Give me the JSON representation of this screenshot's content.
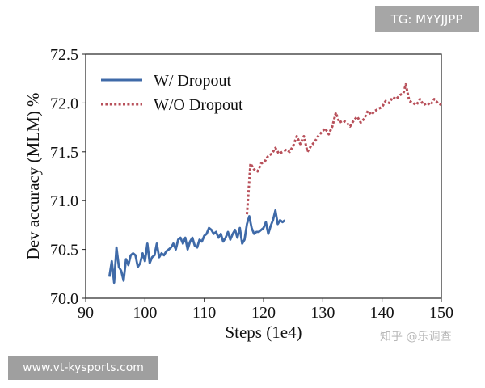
{
  "watermarks": {
    "top_badge": "TG: MYYJJPP",
    "bottom_badge": "www.vt-kysports.com",
    "zhihu": "知乎 @乐调查"
  },
  "chart_data": {
    "type": "line",
    "xlabel": "Steps (1e4)",
    "ylabel": "Dev accuracy (MLM) %",
    "xlim": [
      90,
      150
    ],
    "ylim": [
      70.0,
      72.5
    ],
    "x_ticks": [
      90,
      100,
      110,
      120,
      130,
      140,
      150
    ],
    "y_ticks": [
      70.0,
      70.5,
      71.0,
      71.5,
      72.0,
      72.5
    ],
    "x_tick_labels": [
      "90",
      "100",
      "110",
      "120",
      "130",
      "140",
      "150"
    ],
    "y_tick_labels": [
      "70.0",
      "70.5",
      "71.0",
      "71.5",
      "72.0",
      "72.5"
    ],
    "grid": false,
    "legend_position": "top-left",
    "series": [
      {
        "name": "W/ Dropout",
        "color": "#3f6aa8",
        "style": "solid",
        "points": [
          [
            94.0,
            70.22
          ],
          [
            94.4,
            70.38
          ],
          [
            94.8,
            70.16
          ],
          [
            95.2,
            70.52
          ],
          [
            95.6,
            70.32
          ],
          [
            96.0,
            70.28
          ],
          [
            96.4,
            70.18
          ],
          [
            96.8,
            70.4
          ],
          [
            97.2,
            70.34
          ],
          [
            97.6,
            70.44
          ],
          [
            98.0,
            70.46
          ],
          [
            98.4,
            70.44
          ],
          [
            98.8,
            70.32
          ],
          [
            99.2,
            70.36
          ],
          [
            99.6,
            70.46
          ],
          [
            100.0,
            70.38
          ],
          [
            100.4,
            70.56
          ],
          [
            100.8,
            70.36
          ],
          [
            101.2,
            70.42
          ],
          [
            101.6,
            70.44
          ],
          [
            102.0,
            70.56
          ],
          [
            102.4,
            70.42
          ],
          [
            102.8,
            70.46
          ],
          [
            103.2,
            70.44
          ],
          [
            103.6,
            70.48
          ],
          [
            104.0,
            70.5
          ],
          [
            104.4,
            70.52
          ],
          [
            104.8,
            70.56
          ],
          [
            105.2,
            70.5
          ],
          [
            105.6,
            70.6
          ],
          [
            106.0,
            70.62
          ],
          [
            106.4,
            70.56
          ],
          [
            106.8,
            70.62
          ],
          [
            107.2,
            70.5
          ],
          [
            107.6,
            70.58
          ],
          [
            108.0,
            70.62
          ],
          [
            108.4,
            70.54
          ],
          [
            108.8,
            70.52
          ],
          [
            109.2,
            70.6
          ],
          [
            109.6,
            70.58
          ],
          [
            110.0,
            70.64
          ],
          [
            110.4,
            70.66
          ],
          [
            110.8,
            70.72
          ],
          [
            111.2,
            70.7
          ],
          [
            111.6,
            70.66
          ],
          [
            112.0,
            70.68
          ],
          [
            112.4,
            70.62
          ],
          [
            112.8,
            70.66
          ],
          [
            113.2,
            70.58
          ],
          [
            113.6,
            70.62
          ],
          [
            114.0,
            70.68
          ],
          [
            114.4,
            70.6
          ],
          [
            114.8,
            70.66
          ],
          [
            115.2,
            70.7
          ],
          [
            115.6,
            70.62
          ],
          [
            116.0,
            70.72
          ],
          [
            116.4,
            70.56
          ],
          [
            116.8,
            70.6
          ],
          [
            117.2,
            70.76
          ],
          [
            117.6,
            70.84
          ],
          [
            118.0,
            70.72
          ],
          [
            118.4,
            70.66
          ],
          [
            118.8,
            70.68
          ],
          [
            119.2,
            70.68
          ],
          [
            119.6,
            70.7
          ],
          [
            120.0,
            70.72
          ],
          [
            120.4,
            70.78
          ],
          [
            120.8,
            70.66
          ],
          [
            121.2,
            70.74
          ],
          [
            121.6,
            70.8
          ],
          [
            122.0,
            70.9
          ],
          [
            122.4,
            70.76
          ],
          [
            122.8,
            70.8
          ],
          [
            123.2,
            70.78
          ],
          [
            123.6,
            70.8
          ]
        ]
      },
      {
        "name": "W/O Dropout",
        "color": "#b8505a",
        "style": "dotted",
        "points": [
          [
            117.2,
            70.86
          ],
          [
            117.8,
            71.38
          ],
          [
            118.4,
            71.32
          ],
          [
            119.0,
            71.3
          ],
          [
            119.6,
            71.38
          ],
          [
            120.2,
            71.4
          ],
          [
            120.8,
            71.46
          ],
          [
            121.4,
            71.48
          ],
          [
            122.0,
            71.54
          ],
          [
            122.6,
            71.48
          ],
          [
            123.2,
            71.5
          ],
          [
            123.8,
            71.52
          ],
          [
            124.4,
            71.5
          ],
          [
            125.0,
            71.56
          ],
          [
            125.6,
            71.66
          ],
          [
            126.2,
            71.58
          ],
          [
            126.8,
            71.66
          ],
          [
            127.4,
            71.5
          ],
          [
            128.0,
            71.56
          ],
          [
            128.6,
            71.6
          ],
          [
            129.2,
            71.66
          ],
          [
            129.8,
            71.7
          ],
          [
            130.4,
            71.74
          ],
          [
            131.0,
            71.68
          ],
          [
            131.6,
            71.76
          ],
          [
            132.2,
            71.9
          ],
          [
            132.8,
            71.8
          ],
          [
            133.4,
            71.82
          ],
          [
            134.0,
            71.8
          ],
          [
            134.6,
            71.76
          ],
          [
            135.2,
            71.82
          ],
          [
            135.8,
            71.86
          ],
          [
            136.4,
            71.8
          ],
          [
            137.0,
            71.84
          ],
          [
            137.6,
            71.92
          ],
          [
            138.2,
            71.88
          ],
          [
            138.8,
            71.92
          ],
          [
            139.4,
            71.94
          ],
          [
            140.0,
            71.96
          ],
          [
            140.6,
            72.02
          ],
          [
            141.2,
            72.0
          ],
          [
            141.8,
            72.06
          ],
          [
            142.4,
            72.04
          ],
          [
            143.0,
            72.08
          ],
          [
            143.6,
            72.1
          ],
          [
            144.0,
            72.19
          ],
          [
            144.6,
            72.02
          ],
          [
            145.2,
            72.0
          ],
          [
            145.8,
            71.98
          ],
          [
            146.4,
            72.04
          ],
          [
            147.0,
            71.98
          ],
          [
            147.6,
            72.0
          ],
          [
            148.2,
            71.98
          ],
          [
            148.8,
            72.04
          ],
          [
            149.4,
            72.0
          ],
          [
            150.0,
            71.98
          ]
        ]
      }
    ]
  }
}
